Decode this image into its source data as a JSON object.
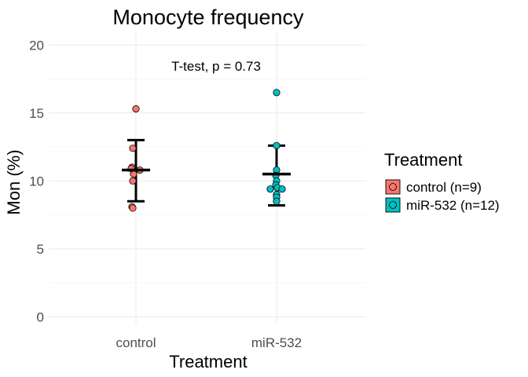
{
  "chart_data": {
    "type": "scatter",
    "title": "Monocyte frequency",
    "xlabel": "Treatment",
    "ylabel": "Mon (%)",
    "categories": [
      "control",
      "miR-532"
    ],
    "ylim": [
      -0.5,
      21
    ],
    "yticks": [
      0,
      5,
      10,
      15,
      20
    ],
    "grid": true,
    "annotation": "T-test, p = 0.73",
    "legend": {
      "title": "Treatment",
      "position": "right",
      "entries": [
        "control (n=9)",
        "miR-532 (n=12)"
      ]
    },
    "colors": {
      "control": "#f8766d",
      "miR-532": "#00bfc4"
    },
    "series": [
      {
        "name": "control (n=9)",
        "category": "control",
        "values": [
          15.3,
          12.4,
          11.0,
          10.8,
          10.5,
          10.0,
          8.1,
          8.0,
          10.9
        ],
        "mean": 10.8,
        "sd_low": 8.5,
        "sd_high": 13.0
      },
      {
        "name": "miR-532 (n=12)",
        "category": "miR-532",
        "values": [
          16.5,
          12.6,
          10.8,
          10.4,
          10.0,
          9.7,
          9.5,
          9.4,
          9.4,
          9.0,
          8.8,
          8.5
        ],
        "mean": 10.5,
        "sd_low": 8.2,
        "sd_high": 12.6
      }
    ]
  }
}
